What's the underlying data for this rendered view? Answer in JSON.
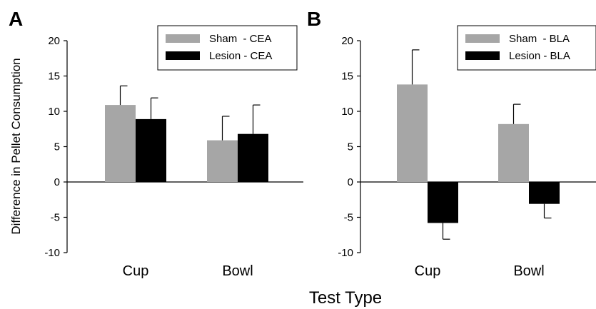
{
  "xlabel": "Test Type",
  "ylabel": "Difference in Pellet Consumption",
  "colors": {
    "sham": "#a6a6a6",
    "lesion": "#000000"
  },
  "chart_data": [
    {
      "type": "bar",
      "panel_label": "A",
      "categories": [
        "Cup",
        "Bowl"
      ],
      "series": [
        {
          "name": "Sham  - CEA",
          "values": [
            10.9,
            5.9
          ],
          "errors": [
            2.7,
            3.4
          ]
        },
        {
          "name": "Lesion - CEA",
          "values": [
            8.9,
            6.8
          ],
          "errors": [
            3.0,
            4.1
          ]
        }
      ],
      "ylim": [
        -10,
        20
      ],
      "yticks": [
        -10,
        -5,
        0,
        5,
        10,
        15,
        20
      ],
      "grid": false,
      "legend_position": "top-right"
    },
    {
      "type": "bar",
      "panel_label": "B",
      "categories": [
        "Cup",
        "Bowl"
      ],
      "series": [
        {
          "name": "Sham  - BLA",
          "values": [
            13.8,
            8.2
          ],
          "errors": [
            4.9,
            2.8
          ]
        },
        {
          "name": "Lesion - BLA",
          "values": [
            -5.8,
            -3.1
          ],
          "errors": [
            2.3,
            2.0
          ]
        }
      ],
      "ylim": [
        -10,
        20
      ],
      "yticks": [
        -10,
        -5,
        0,
        5,
        10,
        15,
        20
      ],
      "grid": false,
      "legend_position": "top-right"
    }
  ]
}
